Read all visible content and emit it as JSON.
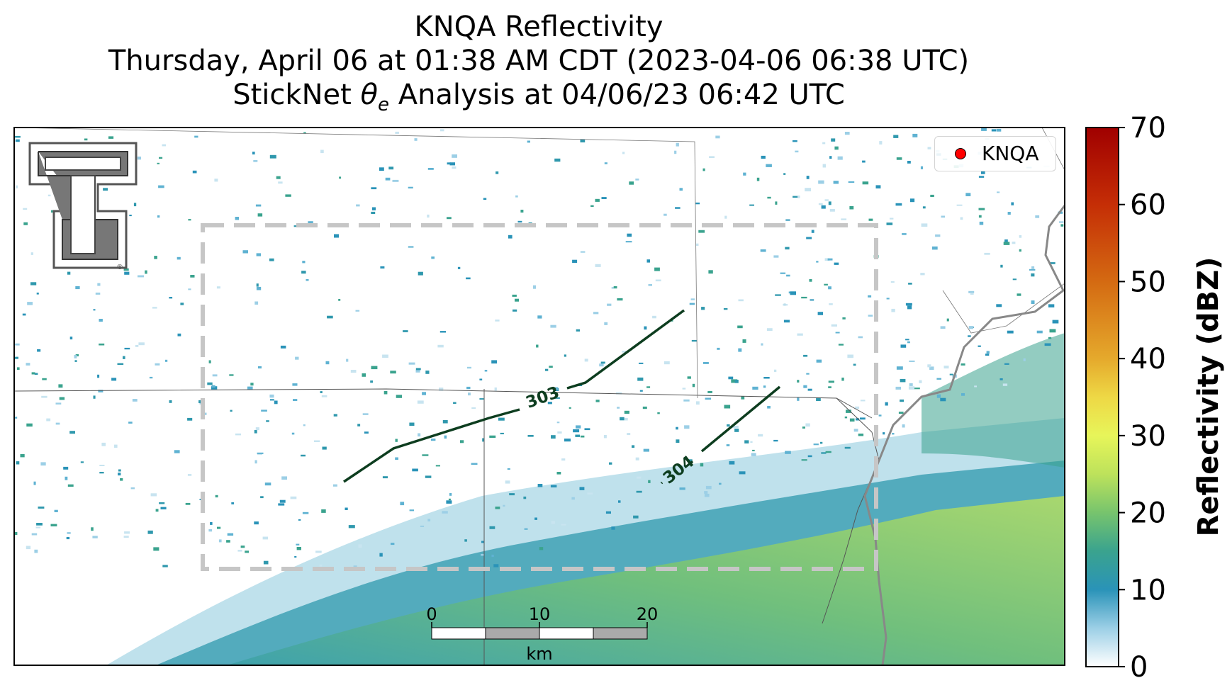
{
  "title": {
    "line1": "KNQA Reflectivity",
    "line2": "Thursday, April 06 at 01:38 AM CDT (2023-04-06 06:38 UTC)",
    "line3_prefix": "StickNet ",
    "line3_symbol": "θ",
    "line3_subscript": "e",
    "line3_suffix": " Analysis at 04/06/23 06:42 UTC"
  },
  "legend": {
    "label": "KNQA",
    "marker_color": "#ff0000"
  },
  "logo": {
    "name": "Texas Tech Double T",
    "registered_mark": "®"
  },
  "contours": [
    {
      "label": "303",
      "color": "#0d3d1f"
    },
    {
      "label": "304",
      "color": "#0d3d1f"
    }
  ],
  "scale_bar": {
    "ticks": [
      "0",
      "10",
      "20"
    ],
    "unit": "km"
  },
  "colorbar": {
    "label": "Reflectivity (dBZ)",
    "ticks": [
      "0",
      "10",
      "20",
      "30",
      "40",
      "50",
      "60",
      "70"
    ],
    "min": 0,
    "max": 70,
    "stops": [
      {
        "value": 0,
        "color": "#ffffff"
      },
      {
        "value": 5,
        "color": "#9ccfe6"
      },
      {
        "value": 10,
        "color": "#2a93b8"
      },
      {
        "value": 15,
        "color": "#3aa38e"
      },
      {
        "value": 20,
        "color": "#77c46d"
      },
      {
        "value": 25,
        "color": "#bde25b"
      },
      {
        "value": 30,
        "color": "#e7f55a"
      },
      {
        "value": 35,
        "color": "#eed845"
      },
      {
        "value": 40,
        "color": "#e5a92c"
      },
      {
        "value": 50,
        "color": "#d46a12"
      },
      {
        "value": 60,
        "color": "#c52e06"
      },
      {
        "value": 70,
        "color": "#a00000"
      }
    ]
  }
}
